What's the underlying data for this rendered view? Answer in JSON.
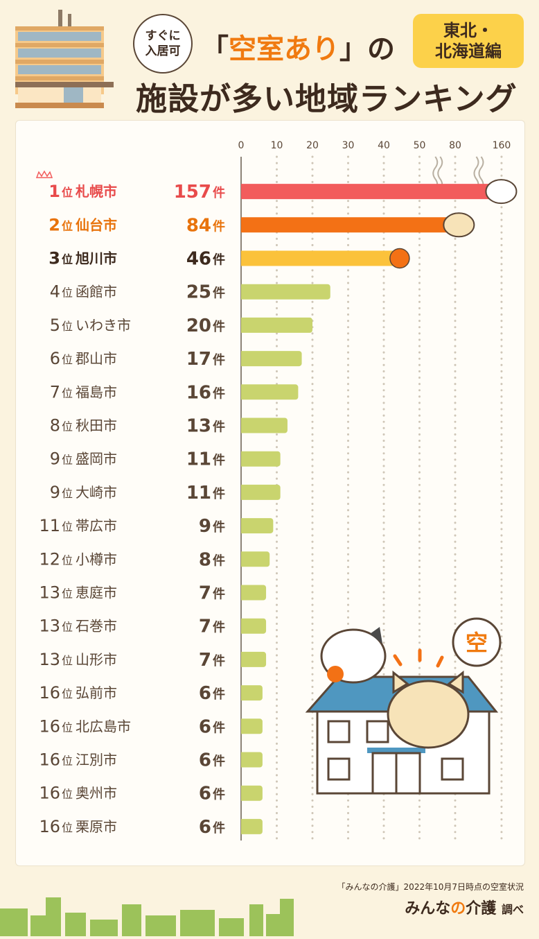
{
  "header": {
    "bubble_line1": "すぐに",
    "bubble_line2": "入居可",
    "title_open": "「",
    "title_accent": "空室あり",
    "title_close": "」の",
    "title_line2": "施設が多い地域ランキング",
    "region_line1": "東北・",
    "region_line2": "北海道編",
    "illustration_text": "空"
  },
  "footer": {
    "note": "「みんなの介護」2022年10月7日時点の空室状況",
    "brand_a": "みんな",
    "brand_no": "の",
    "brand_b": "介護",
    "brand_suffix": "調べ"
  },
  "colors": {
    "rank1": "#f25c5c",
    "rank2": "#f37115",
    "rank3": "#fbc23b",
    "other": "#c9d46e",
    "rank1_text": "#e84b4b",
    "rank2_text": "#e8730c",
    "rank3_text": "#3d2a1e",
    "other_text": "#5a4636"
  },
  "chart_data": {
    "type": "bar",
    "orientation": "horizontal",
    "axis_ticks": [
      "0",
      "10",
      "20",
      "30",
      "40",
      "50",
      "80",
      "160"
    ],
    "axis_break": "50–80, 80–160 (wavy break)",
    "grid": true,
    "unit": "件",
    "rank_suffix": "位",
    "categories": [
      "札幌市",
      "仙台市",
      "旭川市",
      "函館市",
      "いわき市",
      "郡山市",
      "福島市",
      "秋田市",
      "盛岡市",
      "大崎市",
      "帯広市",
      "小樽市",
      "恵庭市",
      "石巻市",
      "山形市",
      "弘前市",
      "北広島市",
      "江別市",
      "奥州市",
      "栗原市"
    ],
    "ranks": [
      1,
      2,
      3,
      4,
      5,
      6,
      7,
      8,
      9,
      9,
      11,
      12,
      13,
      13,
      13,
      16,
      16,
      16,
      16,
      16
    ],
    "values": [
      157,
      84,
      46,
      25,
      20,
      17,
      16,
      13,
      11,
      11,
      9,
      8,
      7,
      7,
      7,
      6,
      6,
      6,
      6,
      6
    ]
  }
}
